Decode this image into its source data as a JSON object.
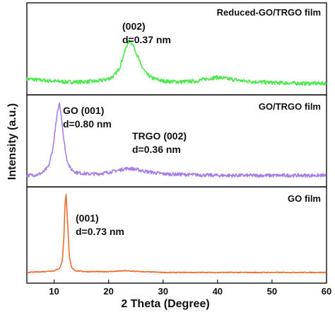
{
  "chart_data": {
    "type": "line",
    "xlabel": "2 Theta (Degree)",
    "ylabel": "Intensity (a.u.)",
    "xlim": [
      5,
      60
    ],
    "x_ticks": [
      10,
      20,
      30,
      40,
      50,
      60
    ],
    "stacked_panels": true,
    "grid": false,
    "panels": [
      {
        "title": "Reduced-GO/TRGO film",
        "color": "#4ee84e",
        "annotations": [
          {
            "line1": "(002)",
            "line2": "d=0.37 nm"
          }
        ],
        "series": {
          "x": [
            5,
            8,
            10,
            12,
            15,
            18,
            20,
            21,
            22,
            22.8,
            23.5,
            24,
            24.5,
            25.2,
            26,
            27,
            28,
            30,
            33,
            36,
            38,
            40,
            42,
            45,
            50,
            55,
            60
          ],
          "y": [
            0.08,
            0.06,
            0.05,
            0.04,
            0.04,
            0.05,
            0.08,
            0.12,
            0.22,
            0.4,
            0.55,
            0.58,
            0.52,
            0.4,
            0.25,
            0.14,
            0.09,
            0.05,
            0.04,
            0.05,
            0.08,
            0.1,
            0.08,
            0.05,
            0.03,
            0.02,
            0.02
          ]
        }
      },
      {
        "title": "GO/TRGO film",
        "color": "#a87ee6",
        "annotations": [
          {
            "line1": "GO (001)",
            "line2": "d=0.80 nm"
          },
          {
            "line1": "TRGO (002)",
            "line2": "d=0.36 nm"
          }
        ],
        "series": {
          "x": [
            5,
            7,
            8,
            9,
            9.8,
            10.3,
            10.8,
            11.0,
            11.3,
            11.8,
            12.3,
            13,
            14,
            16,
            18,
            20,
            22,
            23,
            24,
            25,
            27,
            30,
            35,
            40,
            50,
            60
          ],
          "y": [
            0.02,
            0.03,
            0.06,
            0.14,
            0.38,
            0.68,
            0.92,
            0.96,
            0.82,
            0.48,
            0.24,
            0.11,
            0.06,
            0.04,
            0.04,
            0.06,
            0.09,
            0.11,
            0.11,
            0.1,
            0.07,
            0.04,
            0.03,
            0.02,
            0.02,
            0.02
          ]
        }
      },
      {
        "title": "GO film",
        "color": "#f06a2a",
        "annotations": [
          {
            "line1": "(001)",
            "line2": "d=0.73 nm"
          }
        ],
        "series": {
          "x": [
            5,
            8,
            10,
            11,
            11.5,
            11.8,
            12.0,
            12.2,
            12.5,
            12.8,
            13.2,
            14,
            16,
            20,
            23,
            26,
            30,
            40,
            50,
            60
          ],
          "y": [
            0.01,
            0.02,
            0.03,
            0.06,
            0.15,
            0.45,
            0.85,
            0.98,
            0.6,
            0.2,
            0.07,
            0.03,
            0.02,
            0.02,
            0.03,
            0.02,
            0.01,
            0.01,
            0.01,
            0.01
          ]
        }
      }
    ]
  }
}
